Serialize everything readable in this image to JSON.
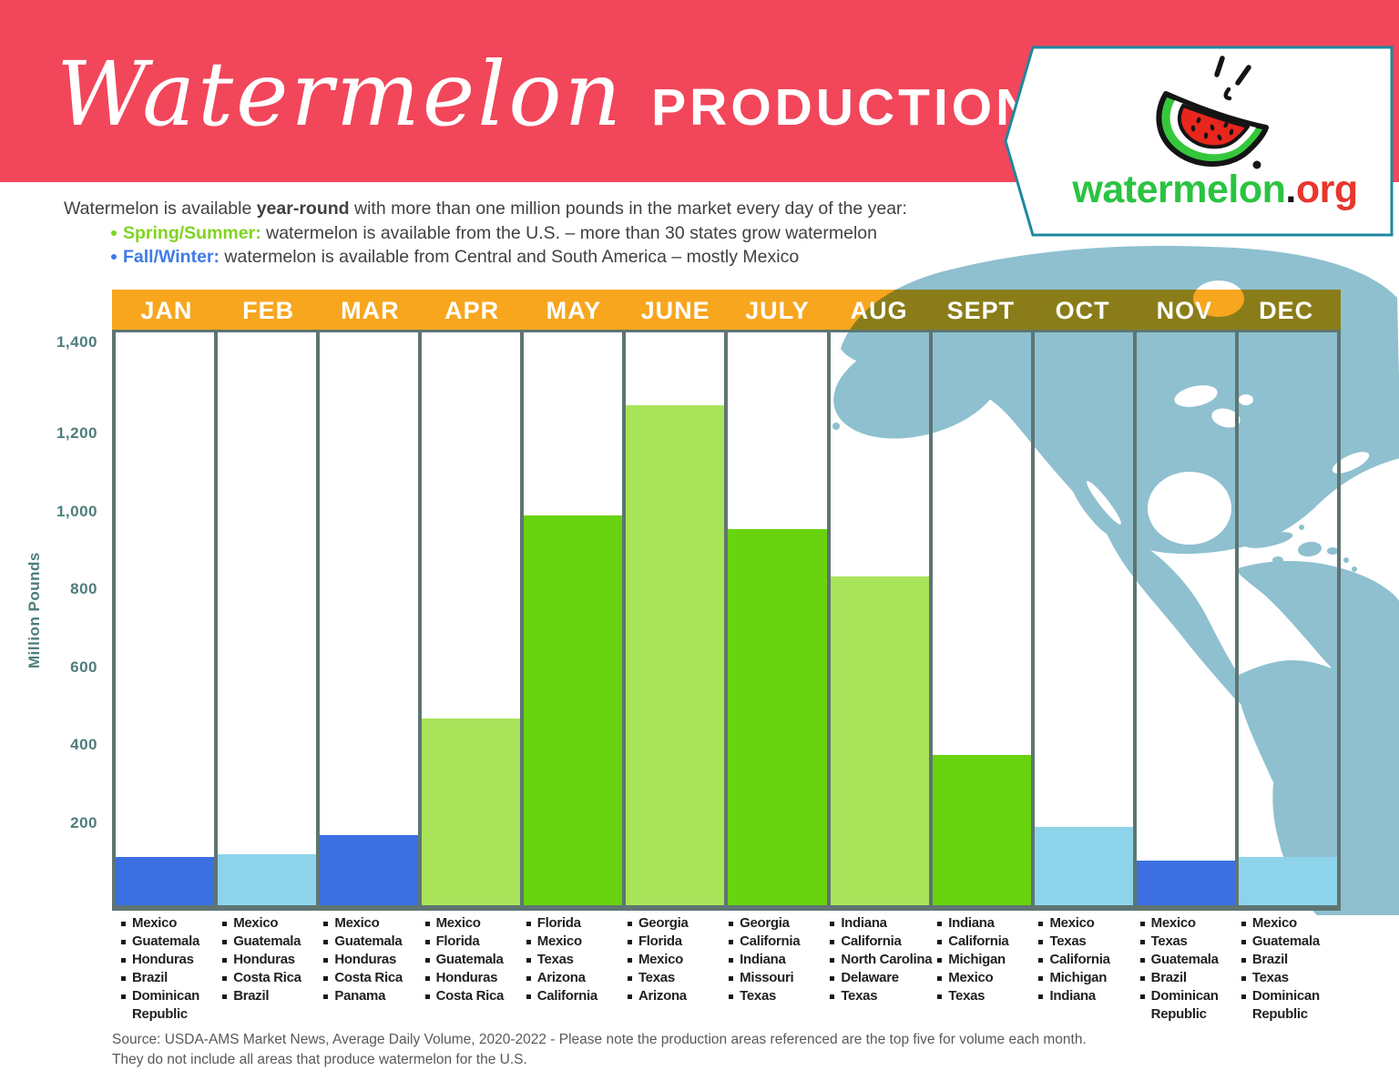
{
  "header": {
    "title_script": "Watermelon",
    "title_caps": "PRODUCTION"
  },
  "logo": {
    "name": "watermelon",
    "dot": ".",
    "tld": "org"
  },
  "intro": {
    "line1_pre": "Watermelon is available ",
    "line1_bold": "year-round",
    "line1_post": " with more than one million pounds in the market every day of the year:",
    "bullets": [
      {
        "label": "Spring/Summer:",
        "text": " watermelon is available from the U.S. – more than 30 states grow watermelon",
        "color": "#7FD41F"
      },
      {
        "label": "Fall/Winter:",
        "text": " watermelon is available from Central and South America – mostly Mexico",
        "color": "#3E7BE8"
      }
    ]
  },
  "chart_data": {
    "type": "bar",
    "title": "",
    "xlabel": "",
    "ylabel": "Million Pounds",
    "ylim": [
      0,
      1470
    ],
    "grid": false,
    "legend": false,
    "yticks": [
      {
        "label": "1,400",
        "value": 1400
      },
      {
        "label": "1,200",
        "value": 1200
      },
      {
        "label": "1,000",
        "value": 1000
      },
      {
        "label": "800",
        "value": 800
      },
      {
        "label": "600",
        "value": 600
      },
      {
        "label": "400",
        "value": 400
      },
      {
        "label": "200",
        "value": 200
      }
    ],
    "categories": [
      "JAN",
      "FEB",
      "MAR",
      "APR",
      "MAY",
      "JUNE",
      "JULY",
      "AUG",
      "SEPT",
      "OCT",
      "NOV",
      "DEC"
    ],
    "values": [
      125,
      130,
      180,
      480,
      1000,
      1285,
      965,
      845,
      385,
      200,
      115,
      125
    ],
    "unit": "million pounds",
    "palette": {
      "royal_blue": "#3C70E2",
      "light_blue": "#8DD4EB",
      "green": "#68D30E",
      "light_green": "#A9E35A"
    },
    "bar_color_keys": [
      "royal_blue",
      "light_blue",
      "royal_blue",
      "light_green",
      "green",
      "light_green",
      "green",
      "light_green",
      "green",
      "light_blue",
      "royal_blue",
      "light_blue"
    ],
    "producers": [
      [
        "Mexico",
        "Guatemala",
        "Honduras",
        "Brazil",
        "Dominican Republic"
      ],
      [
        "Mexico",
        "Guatemala",
        "Honduras",
        "Costa Rica",
        "Brazil"
      ],
      [
        "Mexico",
        "Guatemala",
        "Honduras",
        "Costa Rica",
        "Panama"
      ],
      [
        "Mexico",
        "Florida",
        "Guatemala",
        "Honduras",
        "Costa Rica"
      ],
      [
        "Florida",
        "Mexico",
        "Texas",
        "Arizona",
        "California"
      ],
      [
        "Georgia",
        "Florida",
        "Mexico",
        "Texas",
        "Arizona"
      ],
      [
        "Georgia",
        "California",
        "Indiana",
        "Missouri",
        "Texas"
      ],
      [
        "Indiana",
        "California",
        "North Carolina",
        "Delaware",
        "Texas"
      ],
      [
        "Indiana",
        "California",
        "Michigan",
        "Mexico",
        "Texas"
      ],
      [
        "Mexico",
        "Texas",
        "California",
        "Michigan",
        "Indiana"
      ],
      [
        "Mexico",
        "Texas",
        "Guatemala",
        "Brazil",
        "Dominican Republic"
      ],
      [
        "Mexico",
        "Guatemala",
        "Brazil",
        "Texas",
        "Dominican Republic"
      ]
    ]
  },
  "source": {
    "line1": "Source: USDA-AMS Market News, Average Daily Volume, 2020-2022 - Please note the production areas referenced are the top five for volume each month.",
    "line2": "They do not include all areas that produce watermelon for the U.S."
  }
}
